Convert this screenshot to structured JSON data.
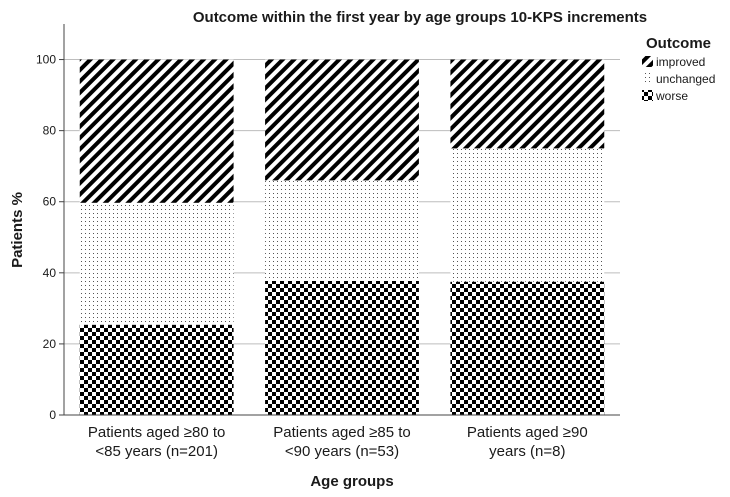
{
  "chart_data": {
    "type": "bar",
    "stacked": true,
    "title": "Outcome within the first year by age groups 10-KPS increments",
    "xlabel": "Age groups",
    "ylabel": "Patients %",
    "ylim": [
      0,
      110
    ],
    "yticks": [
      0,
      20,
      40,
      60,
      80,
      100
    ],
    "grid": true,
    "legend_position": "top-right",
    "legend_title": "Outcome",
    "categories": [
      [
        "Patients aged ≥80 to",
        "<85 years (n=201)"
      ],
      [
        "Patients aged ≥85 to",
        "<90 years (n=53)"
      ],
      [
        "Patients aged ≥90",
        "years (n=8)"
      ]
    ],
    "series": [
      {
        "name": "worse",
        "pattern": "checker",
        "values": [
          25.4,
          37.7,
          37.5
        ]
      },
      {
        "name": "unchanged",
        "pattern": "dots",
        "values": [
          34.3,
          28.3,
          37.5
        ]
      },
      {
        "name": "improved",
        "pattern": "diagonal",
        "values": [
          40.3,
          34.0,
          25.0
        ]
      }
    ],
    "legend_order": [
      "improved",
      "unchanged",
      "worse"
    ]
  }
}
